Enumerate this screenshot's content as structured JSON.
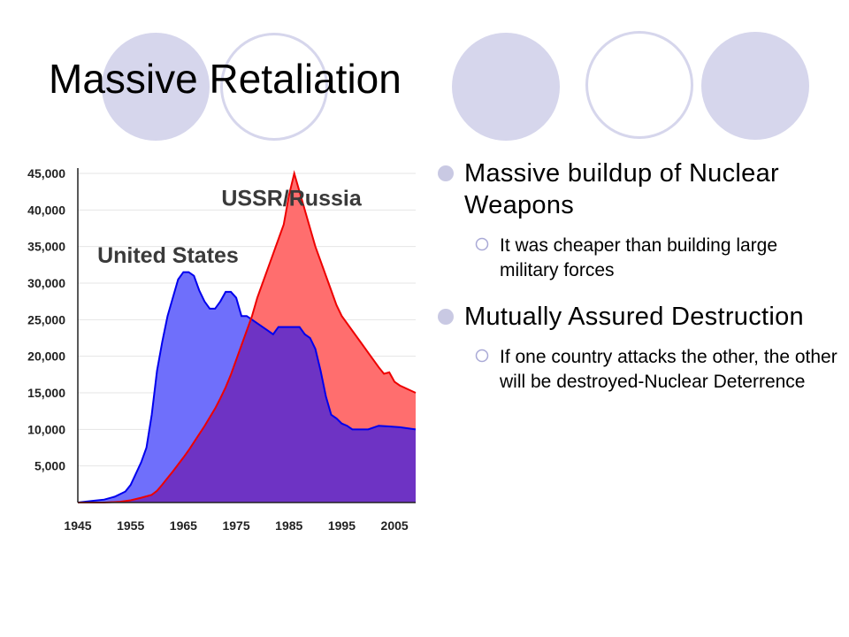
{
  "slide": {
    "title": "Massive Retaliation"
  },
  "bullets": [
    {
      "text": "Massive buildup of Nuclear Weapons",
      "sub": [
        "It was cheaper than building large military forces"
      ]
    },
    {
      "text": "Mutually Assured Destruction",
      "sub": [
        "If one country attacks the other, the other will be destroyed-Nuclear Deterrence"
      ]
    }
  ],
  "colors": {
    "accent": "#d6d6ec",
    "bullet": "#c9c9e3",
    "usa": "#6f6ffb",
    "ussr": "#ff6e6e",
    "overlap": "#6e33c4"
  },
  "chart_data": {
    "type": "area",
    "xlim": [
      1945,
      2009
    ],
    "ylim": [
      0,
      45000
    ],
    "xticks": [
      1945,
      1955,
      1965,
      1975,
      1985,
      1995,
      2005
    ],
    "yticks": [
      5000,
      10000,
      15000,
      20000,
      25000,
      30000,
      35000,
      40000,
      45000
    ],
    "ytick_labels": [
      "5,000",
      "10,000",
      "15,000",
      "20,000",
      "25,000",
      "30,000",
      "35,000",
      "40,000",
      "45,000"
    ],
    "grid": true,
    "series": [
      {
        "name": "United States",
        "color": "#6f6ffb",
        "line": "#0000ee",
        "x": [
          1945,
          1948,
          1950,
          1952,
          1954,
          1955,
          1957,
          1958,
          1959,
          1960,
          1961,
          1962,
          1963,
          1964,
          1965,
          1966,
          1967,
          1968,
          1969,
          1970,
          1971,
          1972,
          1973,
          1974,
          1975,
          1976,
          1977,
          1978,
          1979,
          1980,
          1981,
          1982,
          1983,
          1984,
          1985,
          1986,
          1987,
          1988,
          1989,
          1990,
          1991,
          1992,
          1993,
          1994,
          1995,
          1996,
          1997,
          1998,
          2000,
          2002,
          2004,
          2006,
          2009
        ],
        "y": [
          0,
          250,
          400,
          800,
          1500,
          2400,
          5500,
          7500,
          12000,
          18000,
          22000,
          25500,
          28000,
          30500,
          31500,
          31500,
          31000,
          29000,
          27500,
          26500,
          26500,
          27500,
          28800,
          28800,
          28000,
          25500,
          25500,
          25000,
          24500,
          24000,
          23500,
          23000,
          24000,
          24000,
          24000,
          24000,
          24000,
          23000,
          22500,
          21000,
          18000,
          14500,
          12000,
          11500,
          10800,
          10500,
          10000,
          10000,
          10000,
          10500,
          10400,
          10300,
          10000
        ]
      },
      {
        "name": "USSR/Russia",
        "color": "#ff6e6e",
        "line": "#ee0000",
        "x": [
          1945,
          1950,
          1953,
          1955,
          1957,
          1959,
          1960,
          1961,
          1962,
          1963,
          1964,
          1965,
          1966,
          1967,
          1968,
          1969,
          1970,
          1971,
          1972,
          1973,
          1974,
          1975,
          1976,
          1977,
          1978,
          1979,
          1980,
          1981,
          1982,
          1983,
          1984,
          1985,
          1986,
          1987,
          1988,
          1989,
          1990,
          1991,
          1992,
          1993,
          1994,
          1995,
          1996,
          1997,
          1998,
          1999,
          2000,
          2001,
          2002,
          2003,
          2004,
          2005,
          2006,
          2009
        ],
        "y": [
          0,
          0,
          100,
          300,
          650,
          1050,
          1600,
          2450,
          3350,
          4250,
          5200,
          6150,
          7150,
          8250,
          9350,
          10450,
          11650,
          12850,
          14250,
          15750,
          17500,
          19500,
          21500,
          23500,
          25500,
          28000,
          30000,
          32000,
          34000,
          36000,
          38000,
          42000,
          45000,
          42500,
          40000,
          37500,
          35000,
          33000,
          31000,
          29000,
          27000,
          25500,
          24500,
          23500,
          22500,
          21500,
          20500,
          19500,
          18500,
          17600,
          17800,
          16500,
          16000,
          15000
        ]
      }
    ],
    "labels": [
      {
        "text": "USSR/Russia",
        "x": 1972.2,
        "y": 40600
      },
      {
        "text": "United States",
        "x": 1948.7,
        "y": 32800
      }
    ]
  }
}
